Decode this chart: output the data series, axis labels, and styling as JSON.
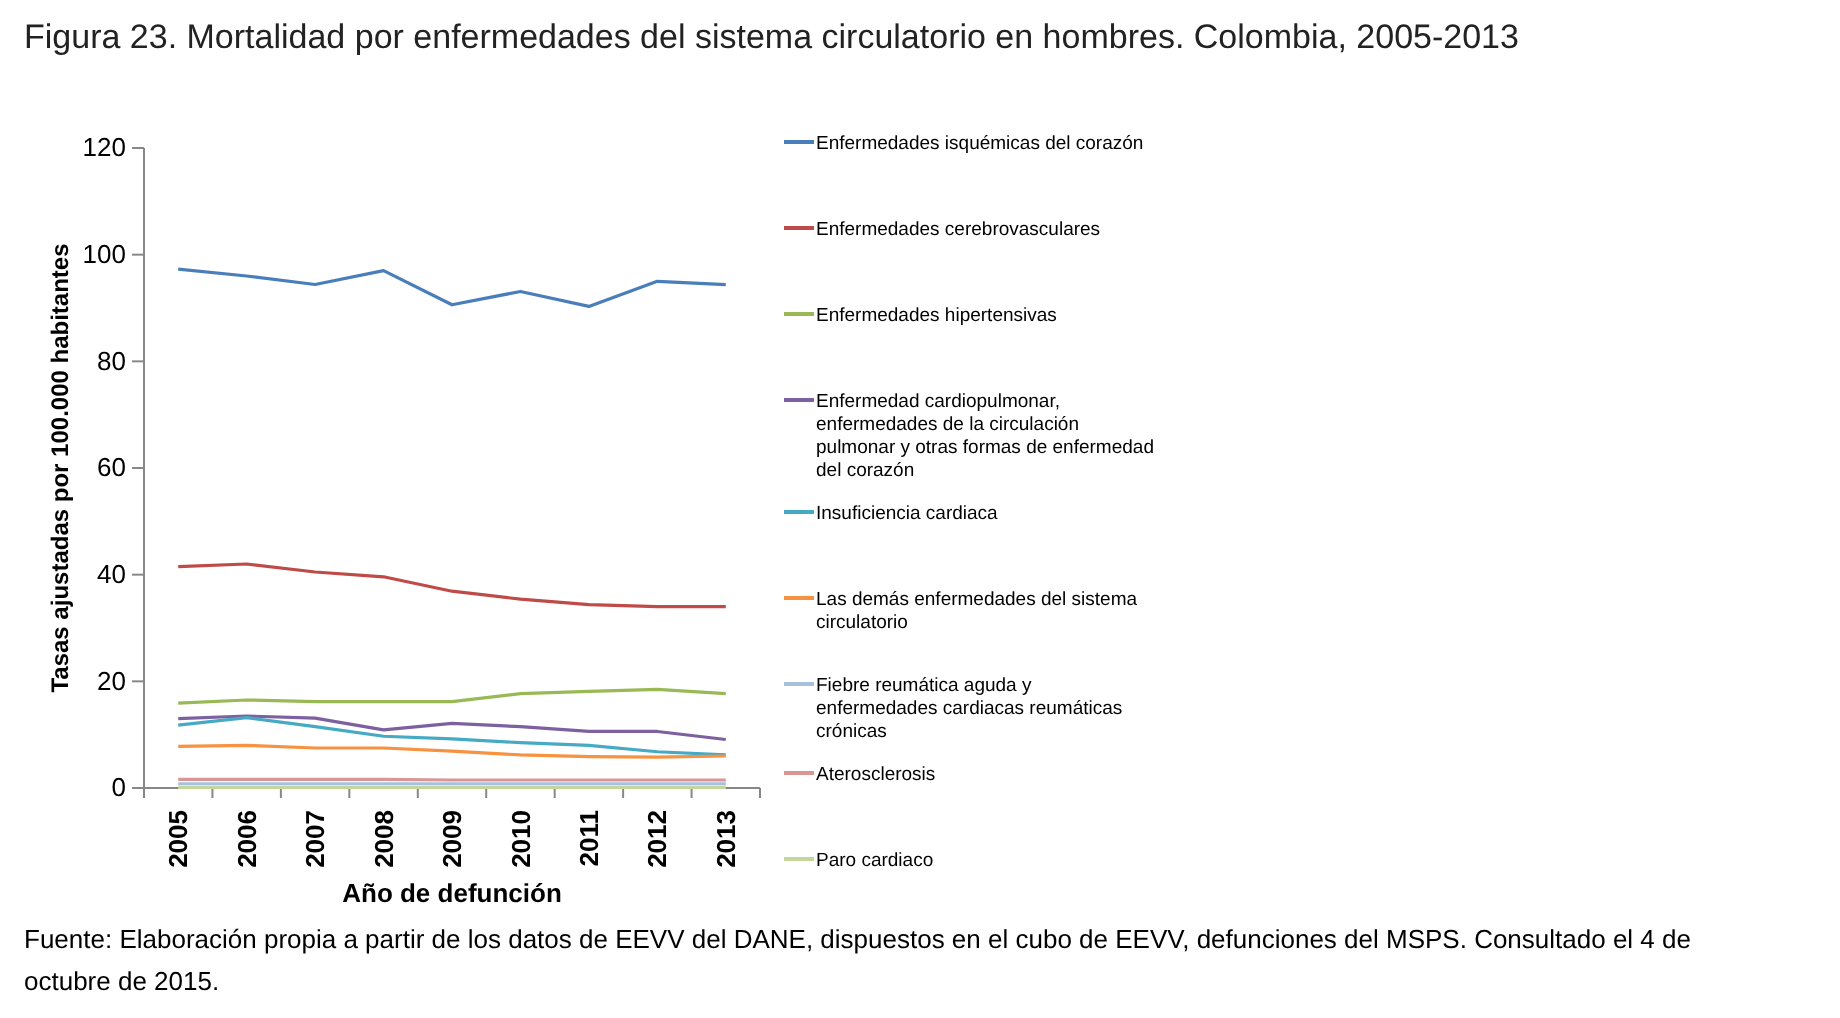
{
  "chart_data": {
    "type": "line",
    "title": "Figura 23. Mortalidad por enfermedades del sistema circulatorio en hombres. Colombia, 2005-2013",
    "xlabel": "Año de defunción",
    "ylabel": "Tasas ajustadas por 100.000 habitantes",
    "categories": [
      "2005",
      "2006",
      "2007",
      "2008",
      "2009",
      "2010",
      "2011",
      "2012",
      "2013"
    ],
    "ylim": [
      0,
      120
    ],
    "yticks": [
      0,
      20,
      40,
      60,
      80,
      100,
      120
    ],
    "grid": false,
    "legend": "right",
    "marker": "none",
    "line_style": "solid",
    "series": [
      {
        "name": "Enfermedades isquémicas del corazón",
        "color": "#4a7ebb",
        "values": [
          97.3,
          96,
          94.4,
          97,
          90.6,
          93.1,
          90.3,
          95,
          94.4
        ]
      },
      {
        "name": "Enfermedades cerebrovasculares",
        "color": "#be4b48",
        "values": [
          41.5,
          42,
          40.5,
          39.6,
          36.9,
          35.4,
          34.4,
          34,
          34
        ]
      },
      {
        "name": "Enfermedades hipertensivas",
        "color": "#98b954",
        "values": [
          15.9,
          16.5,
          16.2,
          16.2,
          16.2,
          17.7,
          18.1,
          18.5,
          17.7
        ]
      },
      {
        "name": "Enfermedad cardiopulmonar, enfermedades de la circulación pulmonar y otras formas de enfermedad del corazón",
        "color": "#7d60a0",
        "values": [
          13,
          13.5,
          13.1,
          10.9,
          12.1,
          11.5,
          10.6,
          10.6,
          9.1
        ]
      },
      {
        "name": "Insuficiencia cardiaca",
        "color": "#46aac5",
        "values": [
          11.8,
          13.2,
          11.5,
          9.7,
          9.2,
          8.5,
          8,
          6.8,
          6.2
        ]
      },
      {
        "name": "Las demás enfermedades del sistema circulatorio",
        "color": "#f69240",
        "values": [
          7.8,
          8,
          7.5,
          7.5,
          6.9,
          6.2,
          5.9,
          5.8,
          6
        ]
      },
      {
        "name": "Fiebre reumática aguda y enfermedades cardiacas reumáticas crónicas",
        "color": "#a7c0de",
        "values": [
          0.8,
          0.8,
          0.8,
          0.8,
          0.8,
          0.8,
          0.8,
          0.8,
          0.8
        ]
      },
      {
        "name": "Aterosclerosis",
        "color": "#d99694",
        "values": [
          1.6,
          1.6,
          1.6,
          1.6,
          1.5,
          1.5,
          1.5,
          1.5,
          1.5
        ]
      },
      {
        "name": "Paro cardiaco",
        "color": "#c3d69b",
        "values": [
          0.1,
          0.1,
          0.1,
          0.1,
          0.1,
          0.1,
          0.1,
          0.1,
          0.1
        ]
      }
    ],
    "annotations": [
      "Fuente: Elaboración propia a partir de los datos de EEVV del DANE, dispuestos en el cubo de EEVV, defunciones del MSPS. Consultado el 4 de octubre de 2015."
    ]
  }
}
